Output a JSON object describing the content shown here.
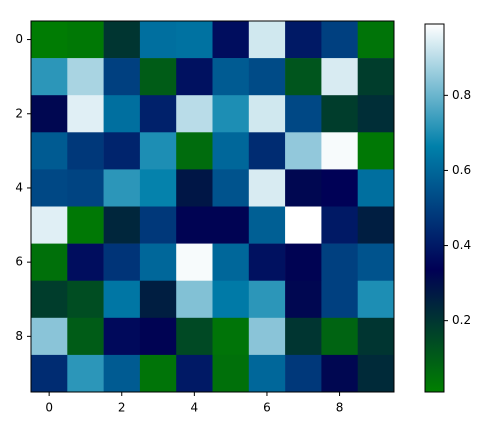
{
  "chart_data": {
    "type": "heatmap",
    "colormap": "ocean",
    "z": [
      [
        0.02,
        0.03,
        0.2,
        0.62,
        0.63,
        0.37,
        0.93,
        0.4,
        0.5,
        0.04
      ],
      [
        0.72,
        0.88,
        0.5,
        0.1,
        0.38,
        0.57,
        0.53,
        0.12,
        0.94,
        0.18
      ],
      [
        0.32,
        0.95,
        0.62,
        0.42,
        0.9,
        0.7,
        0.93,
        0.52,
        0.18,
        0.22
      ],
      [
        0.57,
        0.48,
        0.43,
        0.7,
        0.06,
        0.6,
        0.45,
        0.85,
        0.98,
        0.03
      ],
      [
        0.52,
        0.51,
        0.72,
        0.67,
        0.28,
        0.55,
        0.94,
        0.32,
        0.34,
        0.62
      ],
      [
        0.95,
        0.03,
        0.24,
        0.48,
        0.33,
        0.33,
        0.58,
        0.99,
        0.4,
        0.26
      ],
      [
        0.05,
        0.37,
        0.47,
        0.6,
        0.98,
        0.6,
        0.38,
        0.33,
        0.5,
        0.55
      ],
      [
        0.18,
        0.14,
        0.64,
        0.26,
        0.83,
        0.65,
        0.72,
        0.32,
        0.5,
        0.7
      ],
      [
        0.84,
        0.1,
        0.36,
        0.33,
        0.15,
        0.04,
        0.84,
        0.2,
        0.08,
        0.2
      ],
      [
        0.45,
        0.72,
        0.57,
        0.04,
        0.4,
        0.05,
        0.6,
        0.48,
        0.32,
        0.23
      ]
    ],
    "xlim": [
      -0.5,
      9.5
    ],
    "ylim": [
      9.5,
      -0.5
    ],
    "xticks": [
      0,
      2,
      4,
      6,
      8
    ],
    "yticks": [
      0,
      2,
      4,
      6,
      8
    ],
    "clim": [
      0.01,
      0.99
    ],
    "cbar_ticks": [
      0.2,
      0.4,
      0.6,
      0.8
    ]
  }
}
